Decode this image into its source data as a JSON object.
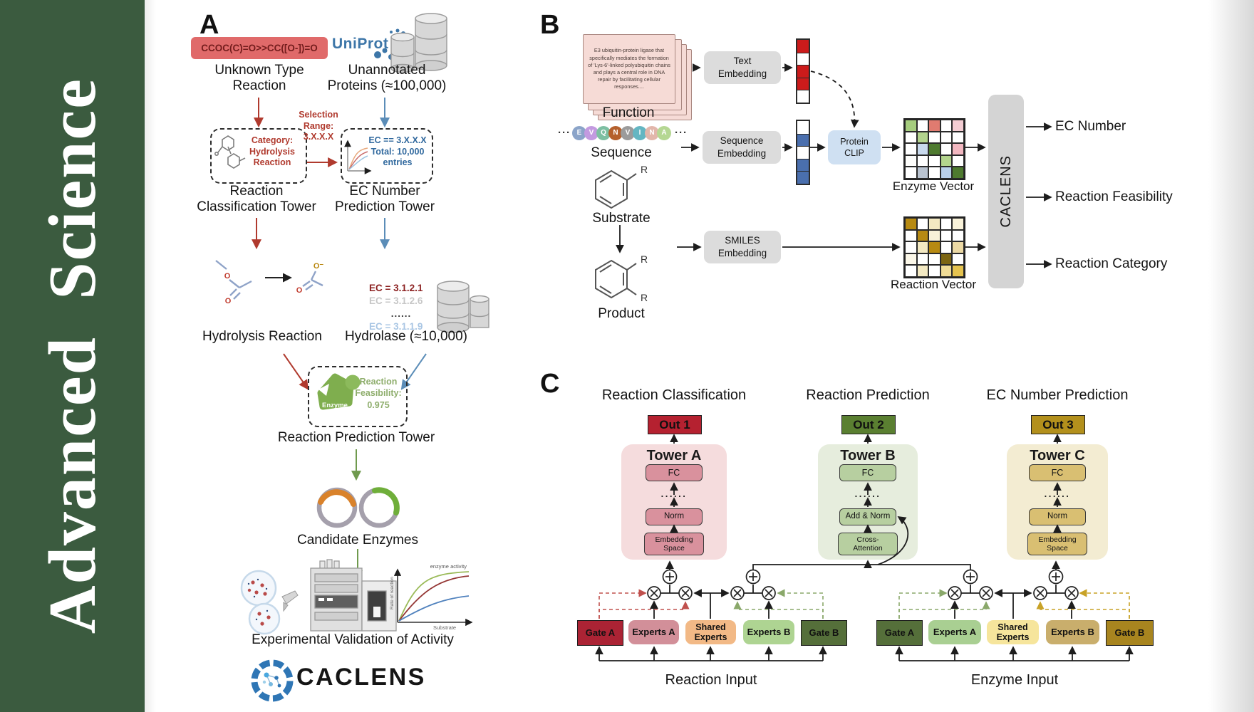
{
  "sidebar": {
    "journal_title": "Advanced Science",
    "bg_color": "#3b5b3f"
  },
  "panel_a": {
    "label": "A",
    "smiles": "CCOC(C)=O>>CC([O-])=O",
    "unknown_type_label": "Unknown Type\nReaction",
    "uniprot_label": "UniProt",
    "unannotated_label": "Unannotated\nProteins (≈100,000)",
    "selection_range_label": "Selection\nRange:\n3.X.X.X",
    "category_box_label": "Category:\nHydrolysis\nReaction",
    "ec_box_label": "EC == 3.X.X.X\nTotal: 10,000\nentries",
    "classification_tower_label": "Reaction\nClassification Tower",
    "ec_tower_label": "EC Number\nPrediction Tower",
    "ec_list": [
      "EC = 3.1.2.1",
      "EC = 3.1.2.6",
      "......",
      "EC = 3.1.1.9"
    ],
    "hydrolysis_label": "Hydrolysis Reaction",
    "hydrolase_label": "Hydrolase (≈10,000)",
    "enzyme_blob_label": "Enzyme",
    "feasibility_label": "Reaction\nFeasibility:\n0.975",
    "prediction_tower_label": "Reaction Prediction Tower",
    "candidate_label": "Candidate Enzymes",
    "validation_label": "Experimental Validation of Activity",
    "molecule_atoms": {
      "o": "O",
      "o_minus": "O⁻"
    },
    "kinetics": {
      "annotation": "enzyme activity",
      "ylabel": "Rate of reaction",
      "xlabel": "Substrate"
    },
    "brand": "CACLENS"
  },
  "panel_b": {
    "label": "B",
    "function_card_text": "E3 ubiquitin-protein ligase that specifically mediates the formation of 'Lys-6'-linked polyubiquitin chains and plays a central role in DNA repair by facilitating cellular responses....",
    "function_label": "Function",
    "ellipsis": "···",
    "sequence_residues": [
      {
        "letter": "E",
        "color": "#8ba4c9"
      },
      {
        "letter": "V",
        "color": "#c39ae0"
      },
      {
        "letter": "Q",
        "color": "#7dbfa2"
      },
      {
        "letter": "N",
        "color": "#b5602c"
      },
      {
        "letter": "V",
        "color": "#9b9b9b"
      },
      {
        "letter": "I",
        "color": "#64b6c2"
      },
      {
        "letter": "N",
        "color": "#e2b6ab"
      },
      {
        "letter": "A",
        "color": "#b5d793"
      }
    ],
    "sequence_label": "Sequence",
    "substituent": "R",
    "substrate_label": "Substrate",
    "product_label": "Product",
    "text_embedding_label": "Text\nEmbedding",
    "sequence_embedding_label": "Sequence\nEmbedding",
    "smiles_embedding_label": "SMILES\nEmbedding",
    "protein_clip_label": "Protein\nCLIP",
    "text_vector_cells": [
      "#cc1b1b",
      "#ffffff",
      "#cc1b1b",
      "#cc1b1b",
      "#ffffff"
    ],
    "sequence_vector_cells": [
      "#ffffff",
      "#4a6fae",
      "#ffffff",
      "#4a6fae",
      "#4a6fae"
    ],
    "enzyme_vector_cells": [
      "#a6cd7e",
      "#ffffff",
      "#e07b70",
      "#ffffff",
      "#f4cdd3",
      "#ffffff",
      "#b3d48d",
      "#ffffff",
      "#ffffff",
      "#ffffff",
      "#ffffff",
      "#c9daee",
      "#4e7a2f",
      "#ffffff",
      "#f2b7c0",
      "#fdfdfb",
      "#ffffff",
      "#ffffff",
      "#b3d48d",
      "#ffffff",
      "#ffffff",
      "#b9c3d0",
      "#ffffff",
      "#b9cfe9",
      "#4e7a2f"
    ],
    "enzyme_vector_label": "Enzyme Vector",
    "reaction_vector_cells": [
      "#b78a12",
      "#ffffff",
      "#f3e9c2",
      "#ffffff",
      "#faf3da",
      "#ffffff",
      "#b78a12",
      "#f8f1d8",
      "#ffffff",
      "#ffffff",
      "#ffffff",
      "#f3e9c2",
      "#b78a12",
      "#ffffff",
      "#ecd9a4",
      "#fbf7e8",
      "#ffffff",
      "#ffffff",
      "#7c6512",
      "#ffffff",
      "#ffffff",
      "#f3e9c2",
      "#ffffff",
      "#f0dc96",
      "#e5c34f"
    ],
    "reaction_vector_label": "Reaction Vector",
    "caclens_label": "CACLENS",
    "outputs": [
      "EC Number",
      "Reaction Feasibility",
      "Reaction Category"
    ]
  },
  "panel_c": {
    "label": "C",
    "columns": [
      {
        "heading": "Reaction Classification",
        "out": "Out 1",
        "tower": "Tower A",
        "fc": "FC",
        "dots": "......",
        "mid": "Norm",
        "bottom": "Embedding\nSpace"
      },
      {
        "heading": "Reaction Prediction",
        "out": "Out 2",
        "tower": "Tower B",
        "fc": "FC",
        "dots": "......",
        "mid": "Add & Norm",
        "bottom": "Cross-\nAttention"
      },
      {
        "heading": "EC Number Prediction",
        "out": "Out 3",
        "tower": "Tower C",
        "fc": "FC",
        "dots": "......",
        "mid": "Norm",
        "bottom": "Embedding\nSpace"
      }
    ],
    "moe_left": {
      "gate_a": "Gate A",
      "experts_a": "Experts A",
      "shared": "Shared\nExperts",
      "experts_b": "Experts B",
      "gate_b": "Gate B",
      "input_label": "Reaction Input"
    },
    "moe_right": {
      "gate_a": "Gate A",
      "experts_a": "Experts A",
      "shared": "Shared\nExperts",
      "experts_b": "Experts B",
      "gate_b": "Gate B",
      "input_label": "Enzyme Input"
    }
  },
  "colors": {
    "sidebar_green": "#3b5b3f",
    "smiles_red_bg": "#e06a6a",
    "arrow_red": "#b03a2e",
    "arrow_blue": "#5b8db8",
    "arrow_green": "#6f9a4e",
    "uniprot_blue": "#3d76a8",
    "out1": "#b52130",
    "out2": "#5a7f31",
    "out3": "#b3901c",
    "tower_a_bg": "#f5dcdd",
    "tower_b_bg": "#e6eddd",
    "tower_c_bg": "#f3ecd2",
    "gate_a_left": "#ab2334",
    "gate_b_left": "#556f3a",
    "gate_a_right": "#556f3a",
    "gate_b_right": "#a8851f",
    "shared_left": "#f2b986",
    "shared_right": "#f6e59c"
  }
}
